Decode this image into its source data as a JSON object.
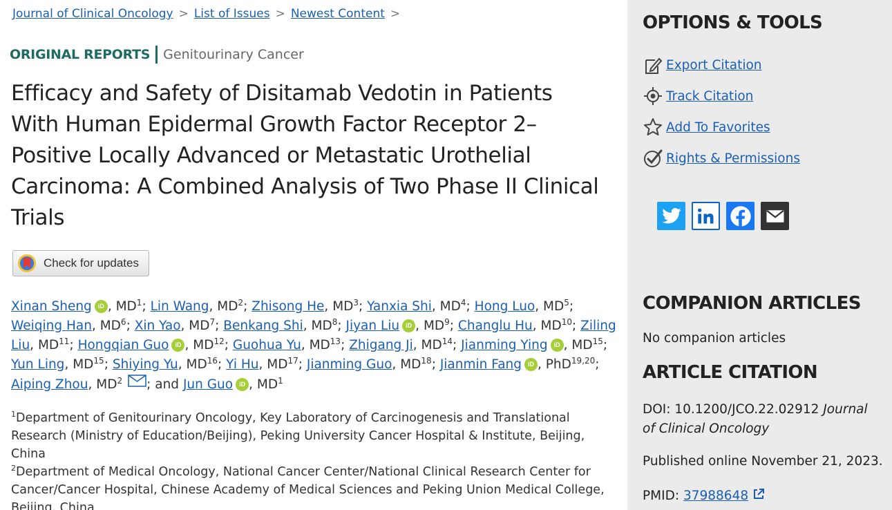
{
  "breadcrumb": {
    "items": [
      "Journal of Clinical Oncology",
      "List of Issues",
      "Newest Content"
    ],
    "separator": ">"
  },
  "article": {
    "category": "ORIGINAL REPORTS",
    "subcategory": "Genitourinary Cancer",
    "title": "Efficacy and Safety of Disitamab Vedotin in Patients With Human Epidermal Growth Factor Receptor 2–Positive Locally Advanced or Metastatic Urothelial Carcinoma: A Combined Analysis of Two Phase II Clinical Trials",
    "check_updates_label": "Check for updates"
  },
  "authors": [
    {
      "name": "Xinan Sheng",
      "orcid": true,
      "degree": "MD",
      "aff": "1"
    },
    {
      "name": "Lin Wang",
      "orcid": false,
      "degree": "MD",
      "aff": "2"
    },
    {
      "name": "Zhisong He",
      "orcid": false,
      "degree": "MD",
      "aff": "3"
    },
    {
      "name": "Yanxia Shi",
      "orcid": false,
      "degree": "MD",
      "aff": "4"
    },
    {
      "name": "Hong Luo",
      "orcid": false,
      "degree": "MD",
      "aff": "5"
    },
    {
      "name": "Weiqing Han",
      "orcid": false,
      "degree": "MD",
      "aff": "6"
    },
    {
      "name": "Xin Yao",
      "orcid": false,
      "degree": "MD",
      "aff": "7"
    },
    {
      "name": "Benkang Shi",
      "orcid": false,
      "degree": "MD",
      "aff": "8"
    },
    {
      "name": "Jiyan Liu",
      "orcid": true,
      "degree": "MD",
      "aff": "9"
    },
    {
      "name": "Changlu Hu",
      "orcid": false,
      "degree": "MD",
      "aff": "10"
    },
    {
      "name": "Ziling Liu",
      "orcid": false,
      "degree": "MD",
      "aff": "11"
    },
    {
      "name": "Hongqian Guo",
      "orcid": true,
      "degree": "MD",
      "aff": "12"
    },
    {
      "name": "Guohua Yu",
      "orcid": false,
      "degree": "MD",
      "aff": "13"
    },
    {
      "name": "Zhigang Ji",
      "orcid": false,
      "degree": "MD",
      "aff": "14"
    },
    {
      "name": "Jianming Ying",
      "orcid": true,
      "degree": "MD",
      "aff": "15"
    },
    {
      "name": "Yun Ling",
      "orcid": false,
      "degree": "MD",
      "aff": "15"
    },
    {
      "name": "Shiying Yu",
      "orcid": false,
      "degree": "MD",
      "aff": "16"
    },
    {
      "name": "Yi Hu",
      "orcid": false,
      "degree": "MD",
      "aff": "17"
    },
    {
      "name": "Jianming Guo",
      "orcid": false,
      "degree": "MD",
      "aff": "18"
    },
    {
      "name": "Jianmin Fang",
      "orcid": true,
      "degree": "PhD",
      "aff": "19,20"
    },
    {
      "name": "Aiping Zhou",
      "orcid": false,
      "degree": "MD",
      "aff": "2",
      "email": true
    },
    {
      "name": "Jun Guo",
      "orcid": true,
      "degree": "MD",
      "aff": "1"
    }
  ],
  "author_and": "and",
  "orcid_label": "iD",
  "affiliations": [
    {
      "num": "1",
      "text": "Department of Genitourinary Oncology, Key Laboratory of Carcinogenesis and Translational Research (Ministry of Education/Beijing), Peking University Cancer Hospital & Institute, Beijing, China"
    },
    {
      "num": "2",
      "text": "Department of Medical Oncology, National Cancer Center/National Clinical Research Center for Cancer/Cancer Hospital, Chinese Academy of Medical Sciences and Peking Union Medical College, Beijing, China"
    }
  ],
  "sidebar": {
    "options_heading": "OPTIONS & TOOLS",
    "tools": [
      {
        "label": "Export Citation",
        "icon": "export-icon"
      },
      {
        "label": "Track Citation",
        "icon": "track-icon"
      },
      {
        "label": "Add To Favorites",
        "icon": "star-icon"
      },
      {
        "label": "Rights & Permissions",
        "icon": "check-icon"
      }
    ],
    "social": [
      "twitter-icon",
      "linkedin-icon",
      "facebook-icon",
      "email-icon"
    ],
    "companion_heading": "COMPANION ARTICLES",
    "companion_text": "No companion articles",
    "citation_heading": "ARTICLE CITATION",
    "doi_label": "DOI: 10.1200/JCO.22.02912",
    "journal": "Journal of Clinical Oncology",
    "published": "Published online November 21, 2023.",
    "pmid_label": "PMID:",
    "pmid": "37988648"
  },
  "colors": {
    "link": "#1a5fb4",
    "accent": "#1e6b63",
    "orcid": "#a6ce39",
    "twitter": "#1da1f2",
    "linkedin": "#0a66c2",
    "facebook": "#1877f2",
    "email": "#333333"
  }
}
